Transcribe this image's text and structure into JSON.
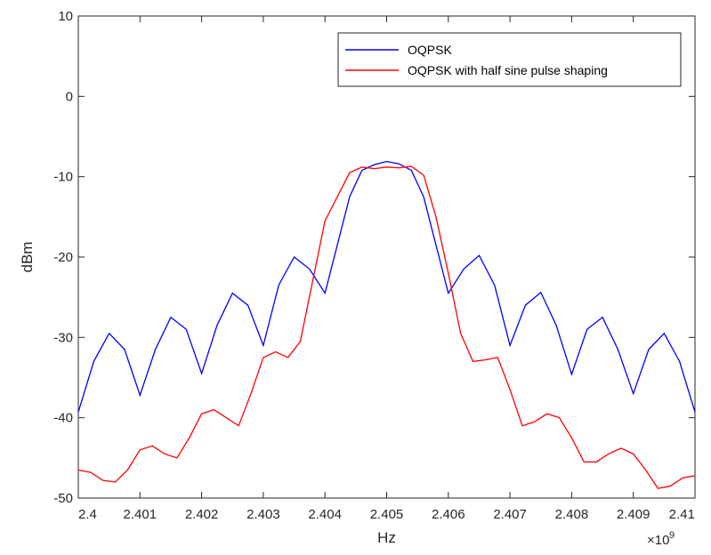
{
  "chart_data": {
    "type": "line",
    "title": "",
    "xlabel": "Hz",
    "ylabel": "dBm",
    "x_exponent_label": "×10",
    "x_exponent_power": "9",
    "xlim": [
      2.4,
      2.41
    ],
    "ylim": [
      -50,
      10
    ],
    "x_ticks": [
      2.4,
      2.401,
      2.402,
      2.403,
      2.404,
      2.405,
      2.406,
      2.407,
      2.408,
      2.409,
      2.41
    ],
    "x_tick_labels": [
      "2.4",
      "2.401",
      "2.402",
      "2.403",
      "2.404",
      "2.405",
      "2.406",
      "2.407",
      "2.408",
      "2.409",
      "2.41"
    ],
    "y_ticks": [
      10,
      0,
      -10,
      -20,
      -30,
      -40,
      -50
    ],
    "y_tick_labels": [
      "10",
      "0",
      "-10",
      "-20",
      "-30",
      "-40",
      "-50"
    ],
    "grid": false,
    "legend_position": "top-right",
    "series": [
      {
        "name": "OQPSK",
        "color": "#0000ff",
        "points": [
          [
            2.4,
            -39.3
          ],
          [
            2.40025,
            -33
          ],
          [
            2.4005,
            -29.5
          ],
          [
            2.40075,
            -31.5
          ],
          [
            2.401,
            -37.2
          ],
          [
            2.40125,
            -31.5
          ],
          [
            2.4015,
            -27.5
          ],
          [
            2.40175,
            -29
          ],
          [
            2.402,
            -34.5
          ],
          [
            2.40225,
            -28.5
          ],
          [
            2.4025,
            -24.5
          ],
          [
            2.40275,
            -26
          ],
          [
            2.403,
            -31
          ],
          [
            2.40325,
            -23.5
          ],
          [
            2.4035,
            -20
          ],
          [
            2.40375,
            -21.5
          ],
          [
            2.404,
            -24.5
          ],
          [
            2.4042,
            -18.5
          ],
          [
            2.4044,
            -12.5
          ],
          [
            2.4046,
            -9.2
          ],
          [
            2.4048,
            -8.5
          ],
          [
            2.405,
            -8.1
          ],
          [
            2.4052,
            -8.4
          ],
          [
            2.4054,
            -9.2
          ],
          [
            2.4056,
            -12.5
          ],
          [
            2.4058,
            -18.5
          ],
          [
            2.406,
            -24.5
          ],
          [
            2.40625,
            -21.5
          ],
          [
            2.4065,
            -19.8
          ],
          [
            2.40675,
            -23.5
          ],
          [
            2.407,
            -31
          ],
          [
            2.40725,
            -26
          ],
          [
            2.4075,
            -24.4
          ],
          [
            2.40775,
            -28.5
          ],
          [
            2.408,
            -34.6
          ],
          [
            2.40825,
            -29
          ],
          [
            2.4085,
            -27.5
          ],
          [
            2.40875,
            -31.5
          ],
          [
            2.409,
            -37
          ],
          [
            2.40925,
            -31.5
          ],
          [
            2.4095,
            -29.5
          ],
          [
            2.40975,
            -33
          ],
          [
            2.41,
            -39.3
          ]
        ]
      },
      {
        "name": "OQPSK with half sine pulse shaping",
        "color": "#ff0000",
        "points": [
          [
            2.4,
            -46.5
          ],
          [
            2.4002,
            -46.8
          ],
          [
            2.4004,
            -47.8
          ],
          [
            2.4006,
            -48
          ],
          [
            2.4008,
            -46.5
          ],
          [
            2.401,
            -44
          ],
          [
            2.4012,
            -43.5
          ],
          [
            2.4014,
            -44.5
          ],
          [
            2.4016,
            -45
          ],
          [
            2.4018,
            -42.5
          ],
          [
            2.402,
            -39.5
          ],
          [
            2.4022,
            -39
          ],
          [
            2.4024,
            -40
          ],
          [
            2.4026,
            -41
          ],
          [
            2.4028,
            -37
          ],
          [
            2.403,
            -32.5
          ],
          [
            2.4032,
            -31.8
          ],
          [
            2.4034,
            -32.5
          ],
          [
            2.4036,
            -30.5
          ],
          [
            2.4038,
            -23
          ],
          [
            2.404,
            -15.5
          ],
          [
            2.4042,
            -12.5
          ],
          [
            2.4044,
            -9.5
          ],
          [
            2.4046,
            -8.8
          ],
          [
            2.4048,
            -9
          ],
          [
            2.405,
            -8.8
          ],
          [
            2.4052,
            -8.9
          ],
          [
            2.4054,
            -8.7
          ],
          [
            2.4056,
            -9.8
          ],
          [
            2.4058,
            -15
          ],
          [
            2.406,
            -22
          ],
          [
            2.4062,
            -29.5
          ],
          [
            2.4064,
            -33
          ],
          [
            2.4066,
            -32.8
          ],
          [
            2.4068,
            -32.5
          ],
          [
            2.407,
            -36.5
          ],
          [
            2.4072,
            -41
          ],
          [
            2.4074,
            -40.5
          ],
          [
            2.4076,
            -39.5
          ],
          [
            2.4078,
            -40
          ],
          [
            2.408,
            -42.5
          ],
          [
            2.4082,
            -45.5
          ],
          [
            2.4084,
            -45.5
          ],
          [
            2.4086,
            -44.5
          ],
          [
            2.4088,
            -43.8
          ],
          [
            2.409,
            -44.5
          ],
          [
            2.4092,
            -46.5
          ],
          [
            2.4094,
            -48.8
          ],
          [
            2.4096,
            -48.5
          ],
          [
            2.4098,
            -47.5
          ],
          [
            2.41,
            -47.2
          ]
        ]
      }
    ]
  }
}
